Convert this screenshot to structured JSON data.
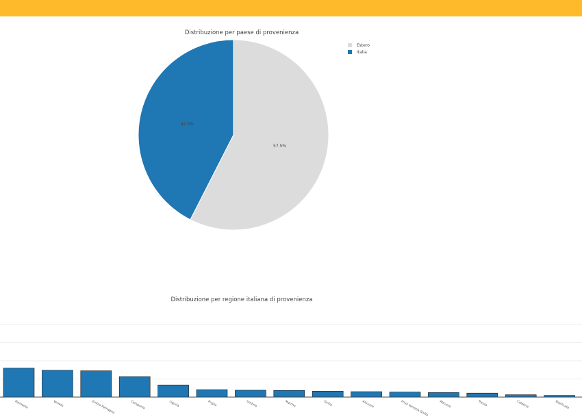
{
  "header": {
    "bar_color": "#FFBA2C"
  },
  "chart_data": [
    {
      "type": "pie",
      "title": "Distribuzione per paese di provenienza",
      "slices": [
        {
          "label": "Estero",
          "value": 57.5,
          "text": "57.5%",
          "color": "#DCDCDC"
        },
        {
          "label": "Italia",
          "value": 42.5,
          "text": "42.5%",
          "color": "#1F77B4"
        }
      ],
      "legend": {
        "position": "top-right"
      }
    },
    {
      "type": "bar",
      "title": "Distribuzione per regione italiana di provenienza",
      "categories": [
        "Piemonte",
        "Veneto",
        "Emilia Romagna",
        "Campania",
        "Liguria",
        "Puglia",
        "Umbria",
        "Marche",
        "Sicilia",
        "Abruzzo",
        "Friuli Venezia Giulia",
        "Abruzzo",
        "Trento",
        "Calabria",
        "Basilicata"
      ],
      "values": [
        16,
        14.8,
        14.5,
        11.3,
        6.7,
        4.1,
        3.8,
        3.7,
        3.3,
        3.0,
        2.8,
        2.5,
        2.2,
        1.3,
        0.9
      ],
      "ylim": [
        0,
        40
      ],
      "grid": true,
      "color": "#1F77B4"
    }
  ]
}
